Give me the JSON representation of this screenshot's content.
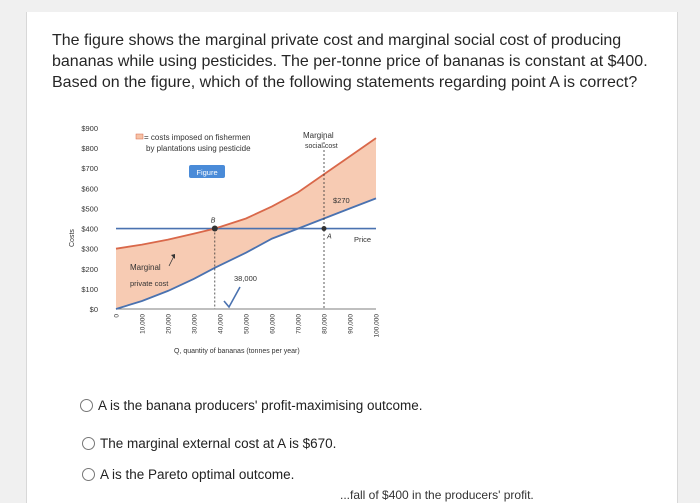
{
  "question": {
    "text": "The figure shows the marginal private cost and marginal social cost of producing bananas while using pesticides. The per-tonne price of bananas is constant at $400. Based on the figure, which of the following statements regarding point A is correct?"
  },
  "figure": {
    "button_label": "Figure",
    "legend_text_line1": "= costs imposed on fishermen",
    "legend_text_line2": "by plantations using pesticide",
    "mpc_label_line1": "Marginal",
    "mpc_label_line2": "private cost",
    "msc_label_line1": "Marginal",
    "msc_label_line2": "social cost",
    "price_label": "Price",
    "point_a_label": "A",
    "point_b_label": "B",
    "annotation_270": "$270",
    "annotation_38000": "38,000",
    "y_axis_title": "Costs",
    "x_axis_title": "Q, quantity of bananas (tonnes per year)",
    "colors": {
      "mpc": "#4a72b0",
      "msc": "#d9684a",
      "price": "#4a72b0",
      "fill": "#f6c2a6"
    }
  },
  "chart_data": {
    "type": "line",
    "y_ticks": [
      "$900",
      "$800",
      "$700",
      "$600",
      "$500",
      "$400",
      "$300",
      "$200",
      "$100",
      "$0"
    ],
    "x_ticks": [
      "0",
      "10,000",
      "20,000",
      "30,000",
      "40,000",
      "50,000",
      "60,000",
      "70,000",
      "80,000",
      "90,000",
      "100,000"
    ],
    "xlim": [
      0,
      100000
    ],
    "ylim": [
      0,
      900
    ],
    "series": [
      {
        "name": "Marginal private cost",
        "x": [
          0,
          10000,
          20000,
          30000,
          38000,
          50000,
          60000,
          70000,
          80000,
          90000,
          100000
        ],
        "y": [
          0,
          40,
          90,
          150,
          205,
          280,
          350,
          400,
          450,
          500,
          550
        ]
      },
      {
        "name": "Marginal social cost",
        "x": [
          0,
          10000,
          20000,
          30000,
          38000,
          50000,
          60000,
          70000,
          80000,
          90000,
          100000
        ],
        "y": [
          300,
          320,
          345,
          375,
          400,
          450,
          510,
          580,
          670,
          760,
          850
        ]
      },
      {
        "name": "Price",
        "x": [
          0,
          100000
        ],
        "y": [
          400,
          400
        ]
      }
    ],
    "points": [
      {
        "label": "B",
        "x": 38000,
        "y": 400
      },
      {
        "label": "A",
        "x": 80000,
        "y": 400
      }
    ]
  },
  "options": [
    {
      "label": "A is the banana producers' profit-maximising outcome."
    },
    {
      "label": "The marginal external cost at A is $670."
    },
    {
      "label": "A is the Pareto optimal outcome."
    },
    {
      "label": "...fall of $400 in the producers' profit."
    }
  ]
}
